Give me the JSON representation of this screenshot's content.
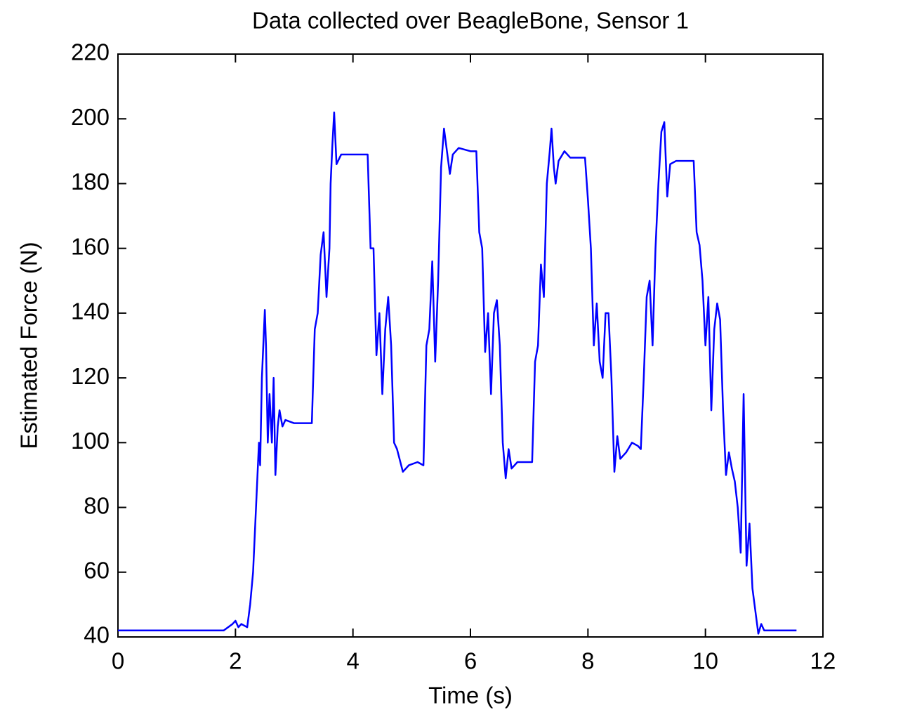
{
  "chart_data": {
    "type": "line",
    "title": "Data collected over BeagleBone, Sensor 1",
    "x_label": "Time (s)",
    "y_label": "Estimated Force (N)",
    "xlim": [
      0,
      12
    ],
    "xticks": [
      0,
      2,
      4,
      6,
      8,
      10,
      12
    ],
    "ylim": [
      40,
      220
    ],
    "yticks": [
      40,
      60,
      80,
      100,
      120,
      140,
      160,
      180,
      200,
      220
    ],
    "series": [
      {
        "color": "#0000ff",
        "x": [
          0,
          1.8,
          1.95,
          2.0,
          2.05,
          2.1,
          2.2,
          2.25,
          2.3,
          2.35,
          2.4,
          2.42,
          2.45,
          2.5,
          2.52,
          2.55,
          2.58,
          2.62,
          2.65,
          2.68,
          2.72,
          2.75,
          2.8,
          2.85,
          3.0,
          3.3,
          3.35,
          3.4,
          3.45,
          3.5,
          3.55,
          3.6,
          3.62,
          3.65,
          3.68,
          3.72,
          3.8,
          4.0,
          4.25,
          4.3,
          4.35,
          4.4,
          4.45,
          4.5,
          4.55,
          4.6,
          4.65,
          4.7,
          4.75,
          4.85,
          4.95,
          5.1,
          5.2,
          5.25,
          5.3,
          5.35,
          5.4,
          5.45,
          5.5,
          5.55,
          5.6,
          5.65,
          5.7,
          5.8,
          6.0,
          6.1,
          6.15,
          6.2,
          6.25,
          6.3,
          6.35,
          6.4,
          6.45,
          6.5,
          6.55,
          6.6,
          6.65,
          6.7,
          6.8,
          6.9,
          7.05,
          7.1,
          7.15,
          7.2,
          7.25,
          7.3,
          7.35,
          7.38,
          7.42,
          7.45,
          7.5,
          7.6,
          7.7,
          7.95,
          8.0,
          8.05,
          8.1,
          8.15,
          8.2,
          8.25,
          8.3,
          8.35,
          8.4,
          8.45,
          8.5,
          8.55,
          8.65,
          8.75,
          8.85,
          8.9,
          8.95,
          9.0,
          9.05,
          9.1,
          9.15,
          9.2,
          9.25,
          9.3,
          9.35,
          9.4,
          9.5,
          9.8,
          9.85,
          9.9,
          9.95,
          10.0,
          10.05,
          10.1,
          10.15,
          10.2,
          10.25,
          10.3,
          10.35,
          10.4,
          10.45,
          10.5,
          10.55,
          10.6,
          10.65,
          10.7,
          10.75,
          10.8,
          10.85,
          10.9,
          10.95,
          11.0,
          11.55
        ],
        "values": [
          42,
          42,
          44,
          45,
          43,
          44,
          43,
          50,
          60,
          80,
          100,
          93,
          120,
          141,
          130,
          100,
          115,
          100,
          120,
          90,
          105,
          110,
          105,
          107,
          106,
          106,
          135,
          140,
          158,
          165,
          145,
          160,
          180,
          192,
          202,
          186,
          189,
          189,
          189,
          160,
          160,
          127,
          140,
          115,
          135,
          145,
          130,
          100,
          98,
          91,
          93,
          94,
          93,
          130,
          135,
          156,
          125,
          150,
          185,
          197,
          190,
          183,
          189,
          191,
          190,
          190,
          165,
          160,
          128,
          140,
          115,
          140,
          144,
          130,
          100,
          89,
          98,
          92,
          94,
          94,
          94,
          125,
          130,
          155,
          145,
          180,
          190,
          197,
          185,
          180,
          187,
          190,
          188,
          188,
          175,
          160,
          130,
          143,
          125,
          120,
          140,
          140,
          120,
          91,
          102,
          95,
          97,
          100,
          99,
          98,
          120,
          145,
          150,
          130,
          160,
          180,
          196,
          199,
          176,
          186,
          187,
          187,
          165,
          161,
          150,
          130,
          145,
          110,
          135,
          143,
          138,
          110,
          90,
          97,
          92,
          88,
          80,
          66,
          115,
          62,
          75,
          55,
          48,
          41,
          44,
          42,
          42
        ]
      }
    ]
  }
}
